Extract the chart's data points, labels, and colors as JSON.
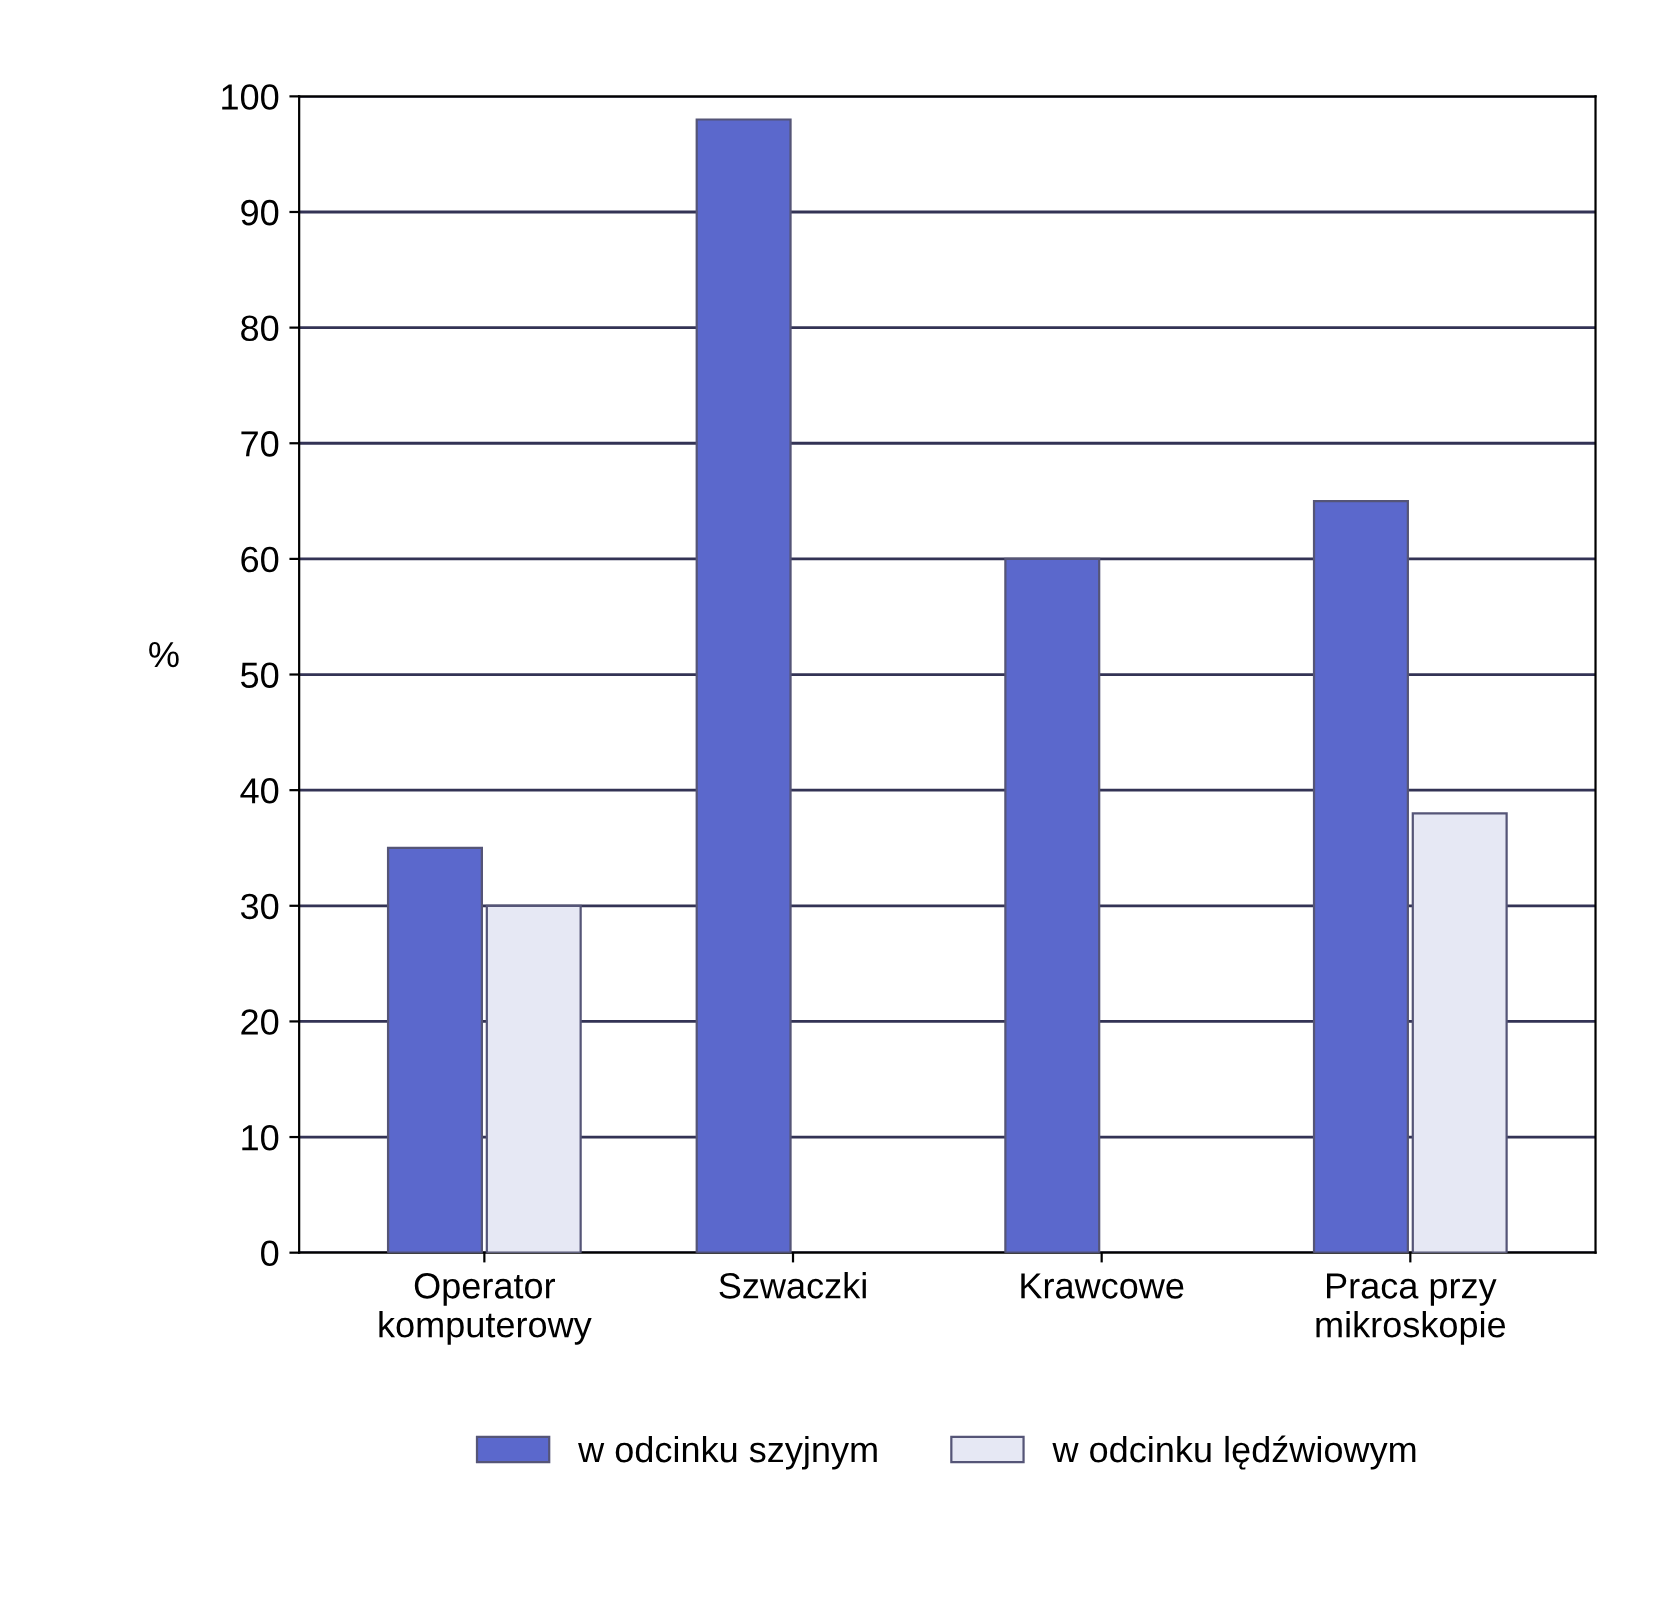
{
  "chart_data": {
    "type": "bar",
    "ylabel": "%",
    "categories": [
      "Operator\nkomputerowy",
      "Szwaczki",
      "Krawcowe",
      "Praca przy\nmikroskopie"
    ],
    "series": [
      {
        "name": "w odcinku szyjnym",
        "color": "#5b68cc",
        "values": [
          35,
          98,
          60,
          65
        ]
      },
      {
        "name": "w odcinku lędźwiowym",
        "color": "#e6e8f4",
        "values": [
          30,
          null,
          null,
          38
        ]
      }
    ],
    "ylim": [
      0,
      100
    ],
    "yticks": [
      0,
      10,
      20,
      30,
      40,
      50,
      60,
      70,
      80,
      90,
      100
    ],
    "grid": "y",
    "legend": "bottom"
  }
}
